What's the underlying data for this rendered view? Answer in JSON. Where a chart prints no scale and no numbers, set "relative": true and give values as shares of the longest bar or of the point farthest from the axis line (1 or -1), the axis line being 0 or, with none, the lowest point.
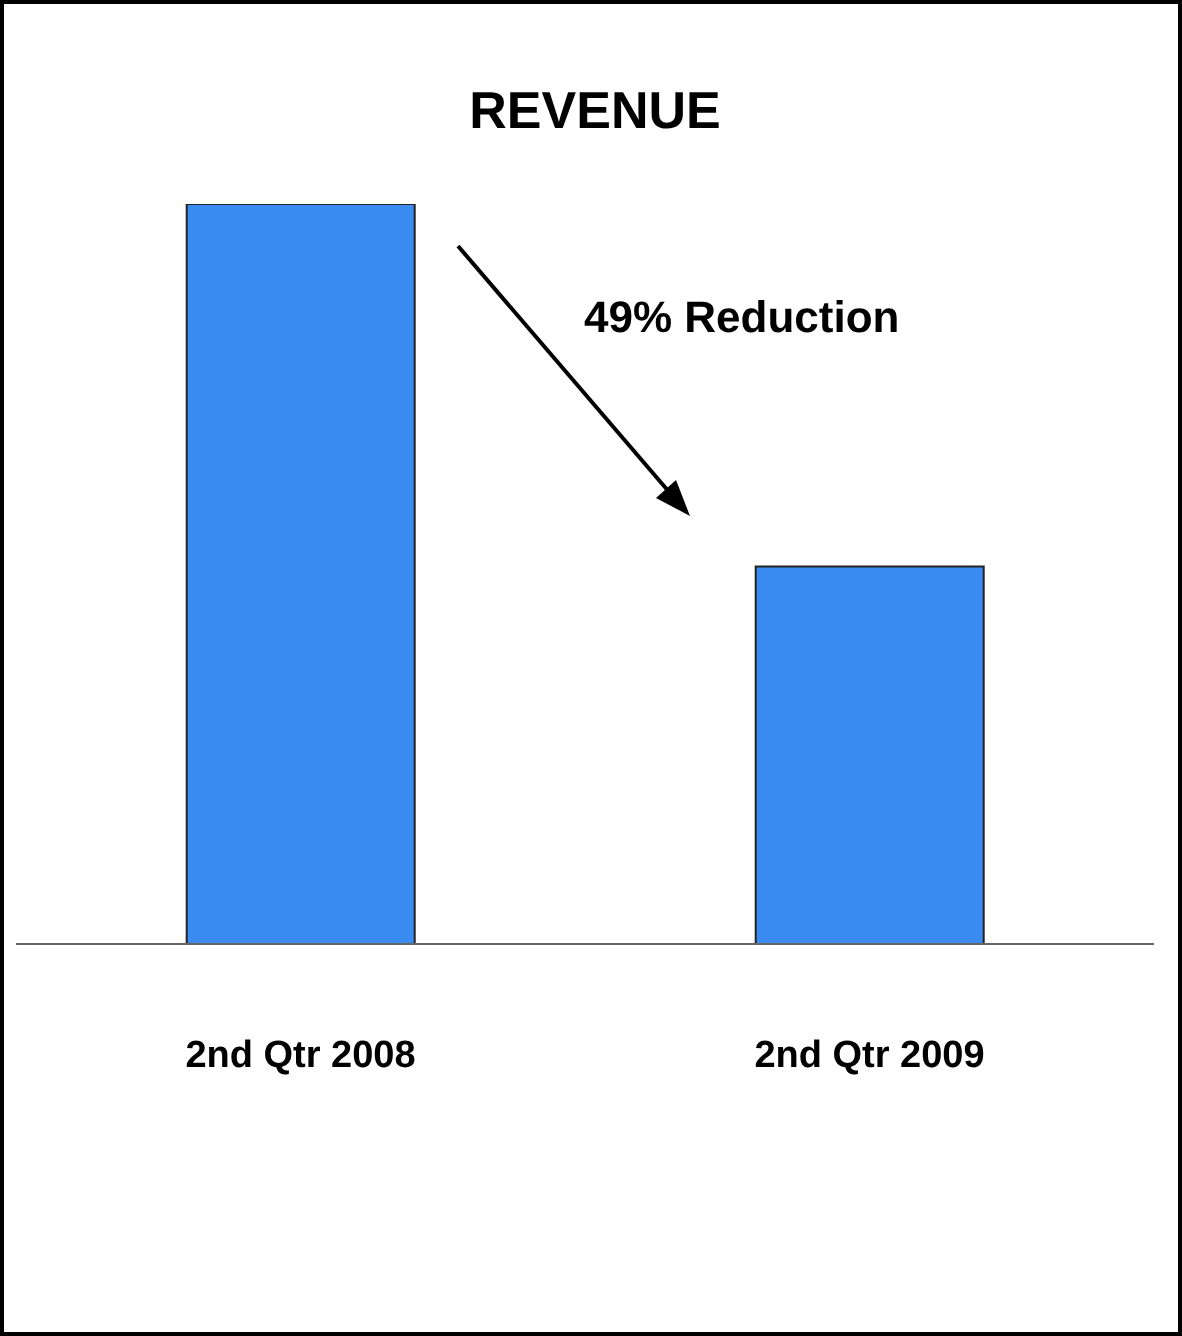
{
  "chart_data": {
    "type": "bar",
    "title": "REVENUE",
    "relative": true,
    "categories": [
      "2nd Qtr 2008",
      "2nd Qtr 2009"
    ],
    "values": [
      1,
      0.51
    ],
    "color": "#3b8cf0",
    "annotations": [
      "49% Reduction"
    ],
    "grid": false,
    "legend": false
  }
}
